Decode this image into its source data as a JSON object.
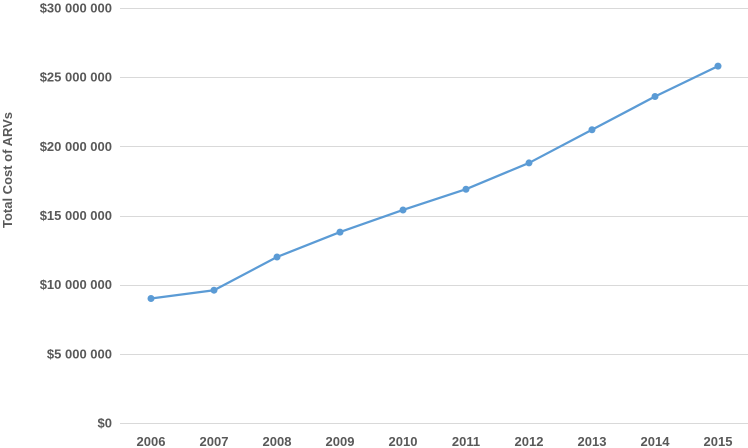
{
  "chart_data": {
    "type": "line",
    "title": "",
    "xlabel": "",
    "ylabel": "Total Cost of ARVs",
    "x": [
      "2006",
      "2007",
      "2008",
      "2009",
      "2010",
      "2011",
      "2012",
      "2013",
      "2014",
      "2015"
    ],
    "series": [
      {
        "values": [
          9000000,
          9600000,
          12000000,
          13800000,
          15400000,
          16900000,
          18800000,
          21200000,
          23600000,
          25800000
        ]
      }
    ],
    "ylim": [
      0,
      30000000
    ],
    "y_ticks": [
      0,
      5000000,
      10000000,
      15000000,
      20000000,
      25000000,
      30000000
    ],
    "y_tick_labels": [
      "$0",
      "$5 000 000",
      "$10 000 000",
      "$15 000 000",
      "$20 000 000",
      "$25 000 000",
      "$30 000 000"
    ],
    "grid": true,
    "legend": "none",
    "colors": {
      "series": "#5b9bd5",
      "grid": "#d9d9d9",
      "text": "#595959"
    }
  }
}
